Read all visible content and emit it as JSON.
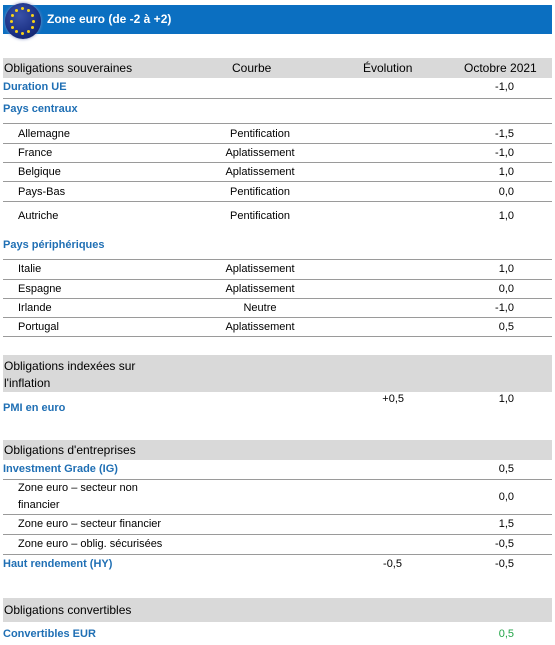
{
  "banner": {
    "title": "Zone euro (de -2 à +2)",
    "flag_icon": "eu-flag-icon"
  },
  "header": {
    "col1": "Obligations souveraines",
    "col2": "Courbe",
    "col3": "Évolution",
    "col4": "Octobre 2021"
  },
  "duration": {
    "label": "Duration UE",
    "value": "-1,0"
  },
  "central": {
    "title": "Pays centraux",
    "rows": [
      {
        "name": "Allemagne",
        "curve": "Pentification",
        "value": "-1,5"
      },
      {
        "name": "France",
        "curve": "Aplatissement",
        "value": "-1,0"
      },
      {
        "name": "Belgique",
        "curve": "Aplatissement",
        "value": "1,0"
      },
      {
        "name": "Pays-Bas",
        "curve": "Pentification",
        "value": "0,0"
      },
      {
        "name": "Autriche",
        "curve": "Pentification",
        "value": "1,0"
      }
    ]
  },
  "peripheral": {
    "title": "Pays périphériques",
    "rows": [
      {
        "name": "Italie",
        "curve": "Aplatissement",
        "value": "1,0"
      },
      {
        "name": "Espagne",
        "curve": "Aplatissement",
        "value": "0,0"
      },
      {
        "name": "Irlande",
        "curve": "Neutre",
        "value": "-1,0"
      },
      {
        "name": "Portugal",
        "curve": "Aplatissement",
        "value": "0,5"
      }
    ]
  },
  "inflation": {
    "line1": "Obligations indexées sur",
    "line2": "l'inflation",
    "pmi_label": "PMI en euro",
    "pmi_change": "+0,5",
    "pmi_value": "1,0"
  },
  "corporate": {
    "title": "Obligations d'entreprises",
    "ig_label": "Investment Grade (IG)",
    "ig_value": "0,5",
    "rows": [
      {
        "name_l1": "Zone euro – secteur non",
        "name_l2": "financier",
        "value": "0,0"
      },
      {
        "name_l1": "Zone euro – secteur financier",
        "value": "1,5"
      },
      {
        "name_l1": "Zone euro – oblig. sécurisées",
        "value": "-0,5"
      }
    ],
    "hy_label": "Haut rendement (HY)",
    "hy_change": "-0,5",
    "hy_value": "-0,5"
  },
  "convertibles": {
    "title": "Obligations convertibles",
    "label": "Convertibles EUR",
    "value": "0,5",
    "value_color": "#22a447"
  }
}
